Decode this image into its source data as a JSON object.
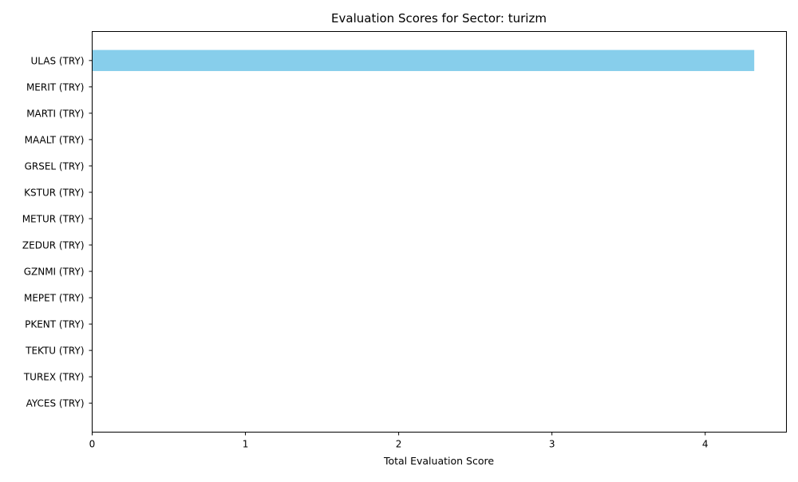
{
  "chart_data": {
    "type": "bar",
    "orientation": "horizontal",
    "title": "Evaluation Scores for Sector: turizm",
    "xlabel": "Total Evaluation Score",
    "ylabel": "",
    "categories": [
      "ULAS (TRY)",
      "MERIT (TRY)",
      "MARTI (TRY)",
      "MAALT (TRY)",
      "GRSEL (TRY)",
      "KSTUR (TRY)",
      "METUR (TRY)",
      "ZEDUR (TRY)",
      "GZNMI (TRY)",
      "MEPET (TRY)",
      "PKENT (TRY)",
      "TEKTU (TRY)",
      "TUREX (TRY)",
      "AYCES (TRY)"
    ],
    "values": [
      4.32,
      0,
      0,
      0,
      0,
      0,
      0,
      0,
      0,
      0,
      0,
      0,
      0,
      0
    ],
    "xlim": [
      0,
      4.53
    ],
    "xticks": [
      0,
      1,
      2,
      3,
      4
    ],
    "grid": false,
    "bar_color": "#87ceeb"
  }
}
